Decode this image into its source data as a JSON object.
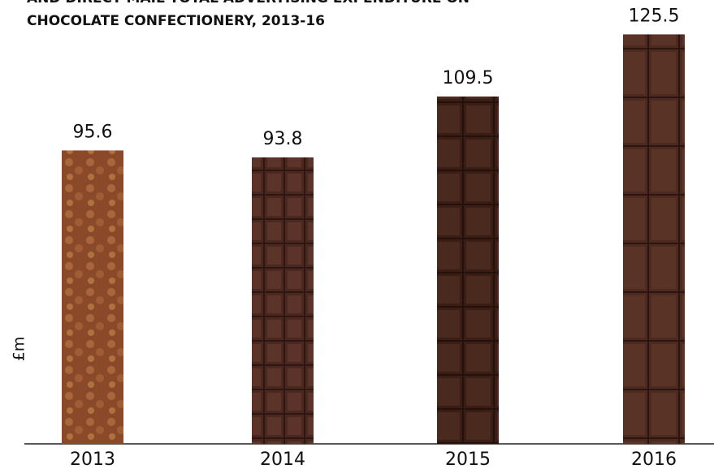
{
  "chart_data": {
    "type": "bar",
    "title": [
      "AND DIRECT MAIL TOTAL ADVERTISING EXPENDITURE ON",
      "CHOCOLATE CONFECTIONERY, 2013-16"
    ],
    "y_label": "£m",
    "categories": [
      "2013",
      "2014",
      "2015",
      "2016"
    ],
    "values": [
      95.6,
      93.8,
      109.5,
      125.5
    ],
    "ylim": [
      20,
      126
    ]
  }
}
